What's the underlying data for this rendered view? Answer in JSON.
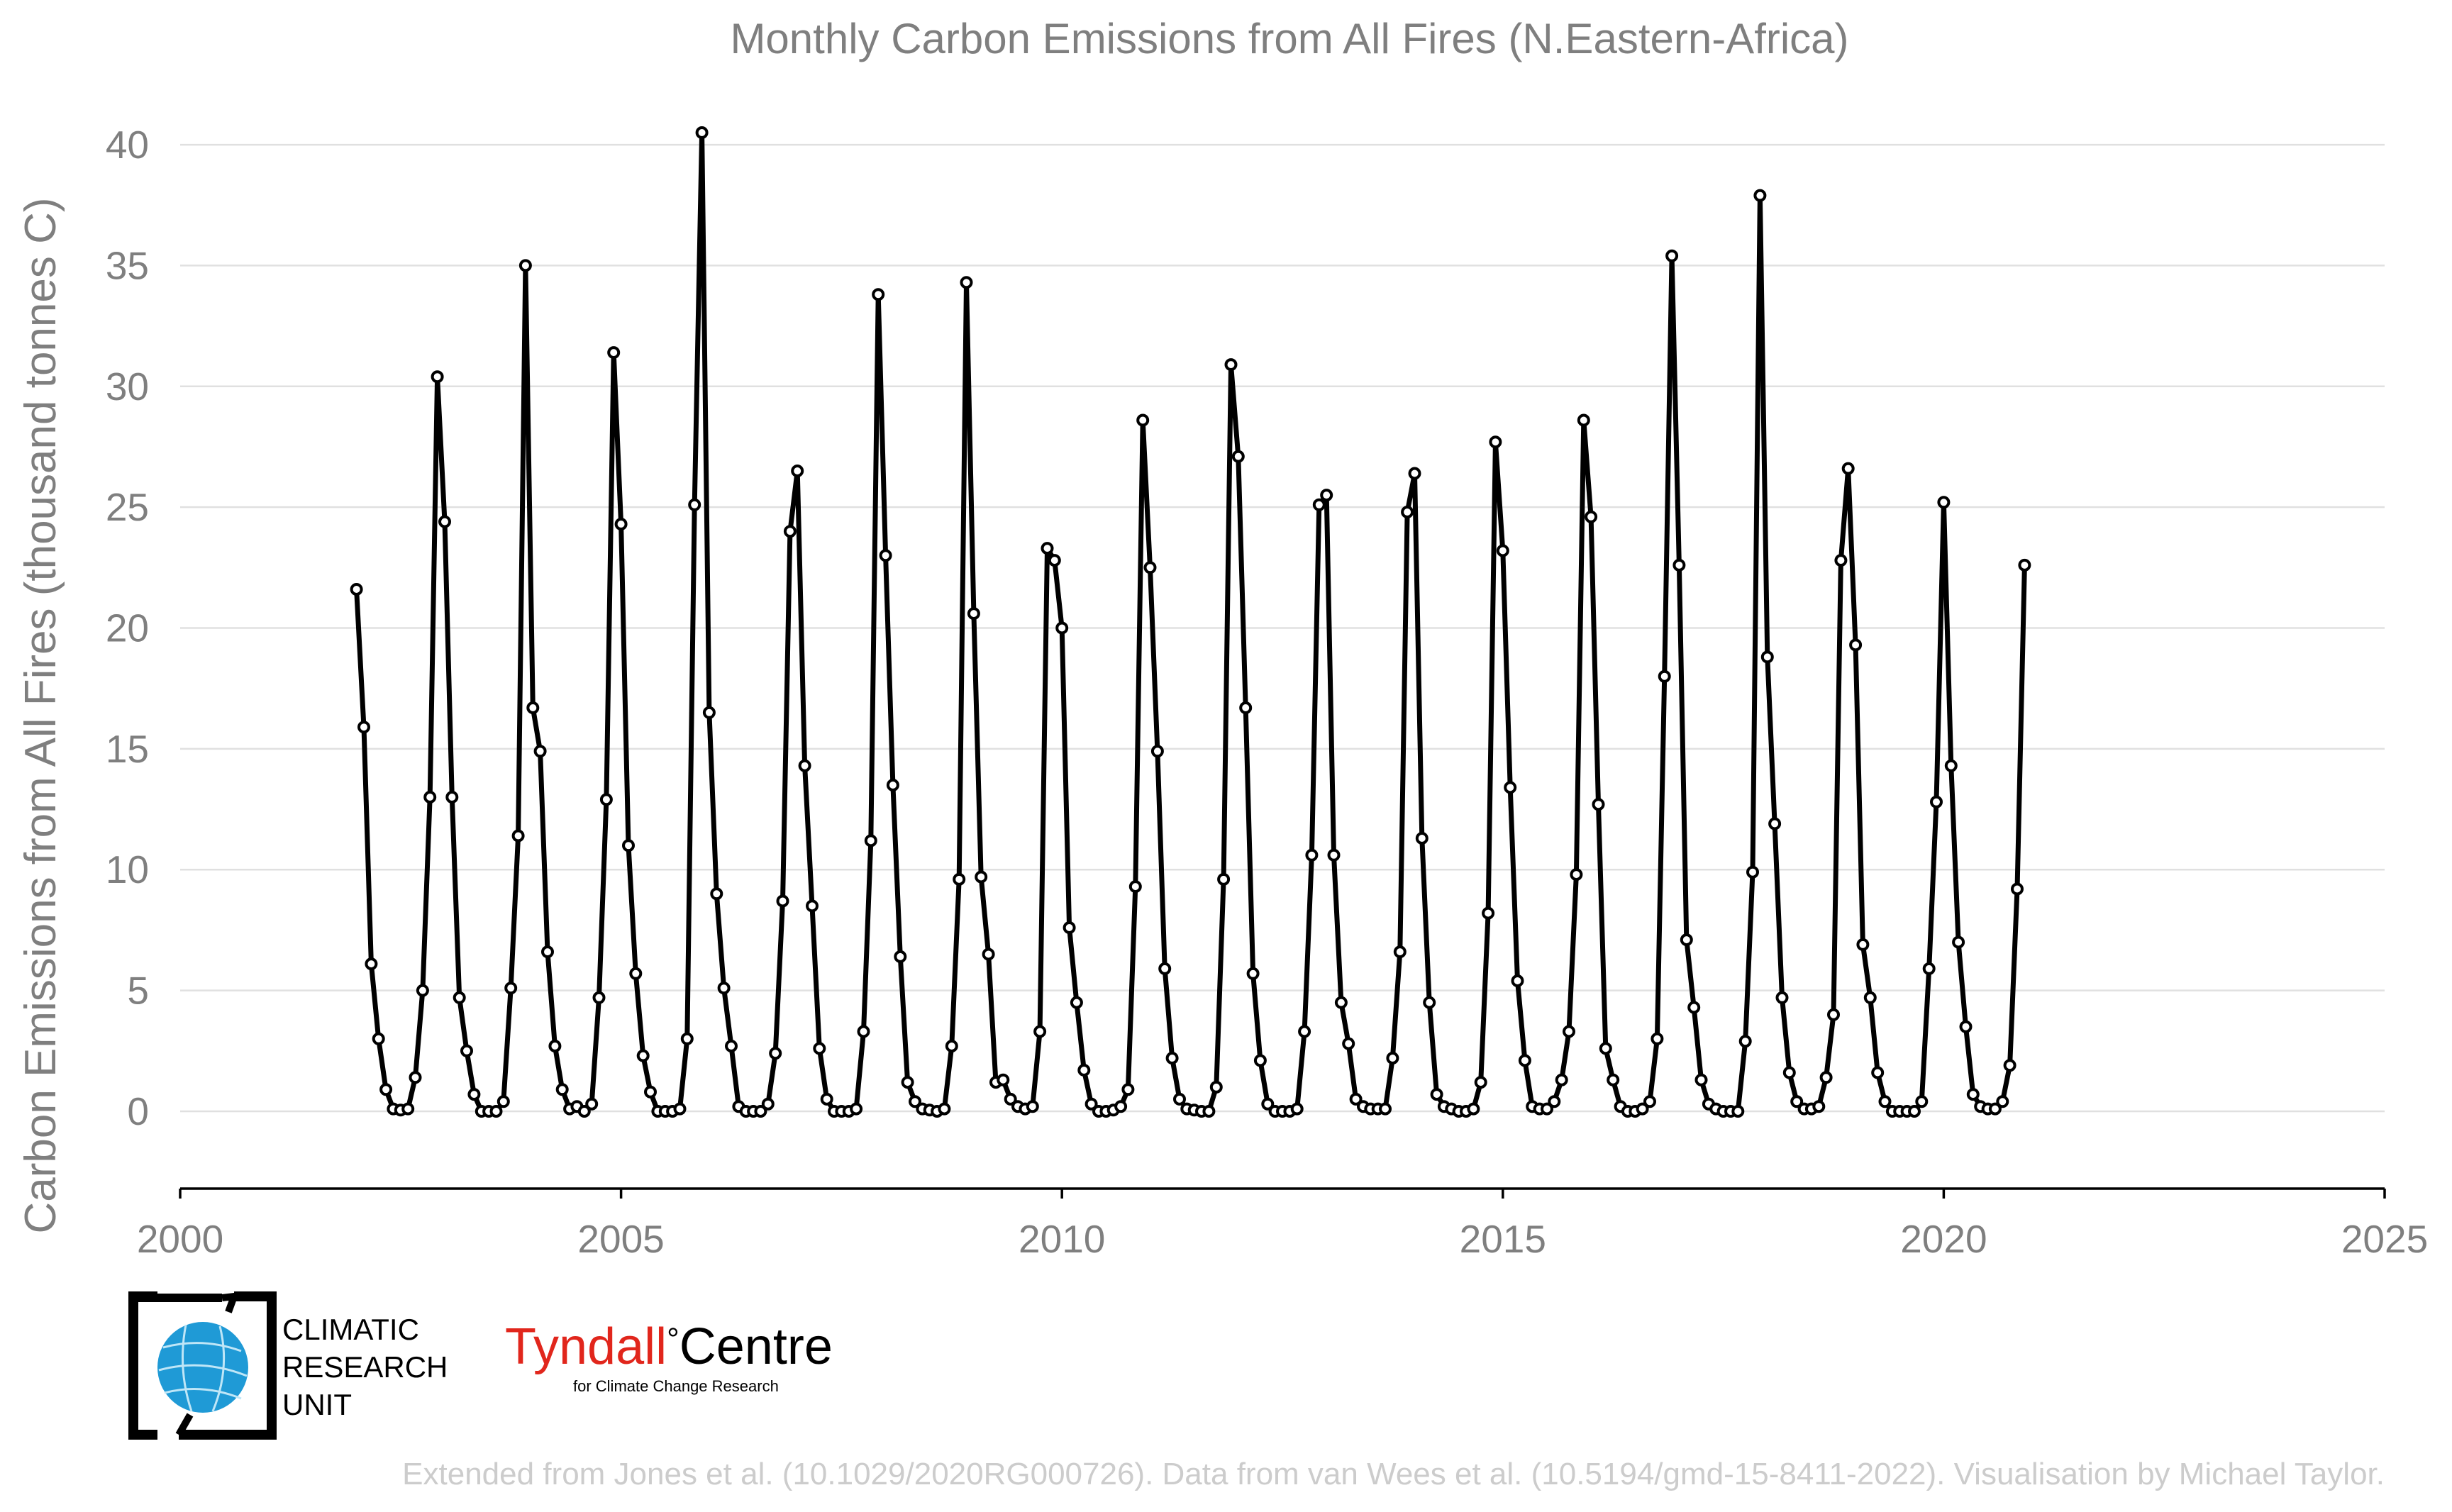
{
  "chart_data": {
    "type": "line",
    "title": "Monthly Carbon Emissions from All Fires (N.Eastern-Africa)",
    "xlabel": "",
    "ylabel": "Carbon Emissions from All Fires (thousand tonnes C)",
    "xlim": [
      2000,
      2025
    ],
    "ylim": [
      -3.2,
      41
    ],
    "x_ticks": [
      "2000",
      "2005",
      "2010",
      "2015",
      "2020",
      "2025"
    ],
    "y_ticks": [
      "0",
      "5",
      "10",
      "15",
      "20",
      "25",
      "30",
      "35",
      "40"
    ],
    "grid": "horizontal",
    "legend": "none",
    "line_color": "#000000",
    "start": "2002-01",
    "series": [
      {
        "values": [
          21.6,
          15.9,
          6.1,
          3.0,
          0.9,
          0.1,
          0.05,
          0.1,
          1.4,
          5.0,
          13.0,
          30.4,
          24.4,
          13.0,
          4.7,
          2.5,
          0.7,
          0.0,
          0.0,
          0.0,
          0.4,
          5.1,
          11.4,
          35.0,
          16.7,
          14.9,
          6.6,
          2.7,
          0.9,
          0.1,
          0.2,
          0.0,
          0.3,
          4.7,
          12.9,
          31.4,
          24.3,
          11.0,
          5.7,
          2.3,
          0.8,
          0.0,
          0.0,
          0.0,
          0.1,
          3.0,
          25.1,
          40.5,
          16.5,
          9.0,
          5.1,
          2.7,
          0.2,
          0.0,
          0.0,
          0.0,
          0.3,
          2.4,
          8.7,
          24.0,
          26.5,
          14.3,
          8.5,
          2.6,
          0.5,
          0.0,
          0.0,
          0.0,
          0.1,
          3.3,
          11.2,
          33.8,
          23.0,
          13.5,
          6.4,
          1.2,
          0.4,
          0.1,
          0.05,
          0.0,
          0.1,
          2.7,
          9.6,
          34.3,
          20.6,
          9.7,
          6.5,
          1.2,
          1.3,
          0.5,
          0.2,
          0.1,
          0.2,
          3.3,
          23.3,
          22.8,
          20.0,
          7.6,
          4.5,
          1.7,
          0.3,
          0.0,
          0.0,
          0.05,
          0.2,
          0.9,
          9.3,
          28.6,
          22.5,
          14.9,
          5.9,
          2.2,
          0.5,
          0.1,
          0.05,
          0.0,
          0.0,
          1.0,
          9.6,
          30.9,
          27.1,
          16.7,
          5.7,
          2.1,
          0.3,
          0.0,
          0.0,
          0.0,
          0.1,
          3.3,
          10.6,
          25.1,
          25.5,
          10.6,
          4.5,
          2.8,
          0.5,
          0.2,
          0.1,
          0.1,
          0.1,
          2.2,
          6.6,
          24.8,
          26.4,
          11.3,
          4.5,
          0.7,
          0.2,
          0.1,
          0.0,
          0.0,
          0.1,
          1.2,
          8.2,
          27.7,
          23.2,
          13.4,
          5.4,
          2.1,
          0.2,
          0.1,
          0.1,
          0.4,
          1.3,
          3.3,
          9.8,
          28.6,
          24.6,
          12.7,
          2.6,
          1.3,
          0.2,
          0.0,
          0.0,
          0.1,
          0.4,
          3.0,
          18.0,
          35.4,
          22.6,
          7.1,
          4.3,
          1.3,
          0.3,
          0.1,
          0.0,
          0.0,
          0.0,
          2.9,
          9.9,
          37.9,
          18.8,
          11.9,
          4.7,
          1.6,
          0.4,
          0.1,
          0.1,
          0.2,
          1.4,
          4.0,
          22.8,
          26.6,
          19.3,
          6.9,
          4.7,
          1.6,
          0.4,
          0.0,
          0.0,
          0.0,
          0.0,
          0.4,
          5.9,
          12.8,
          25.2,
          14.3,
          7.0,
          3.5,
          0.7,
          0.2,
          0.1,
          0.1,
          0.4,
          1.9,
          9.2,
          22.6
        ]
      }
    ]
  },
  "logos": {
    "cru": {
      "lines": [
        "CLIMATIC",
        "RESEARCH",
        "UNIT"
      ]
    },
    "tyndall": {
      "name": "Tyndall",
      "degree": "°",
      "suffix": "Centre",
      "subtitle": "for Climate Change Research",
      "accent": "#e1261c"
    }
  },
  "credit": "Extended from Jones et al. (10.1029/2020RG000726). Data from van Wees et al. (10.5194/gmd-15-8411-2022). Visualisation by Michael Taylor."
}
